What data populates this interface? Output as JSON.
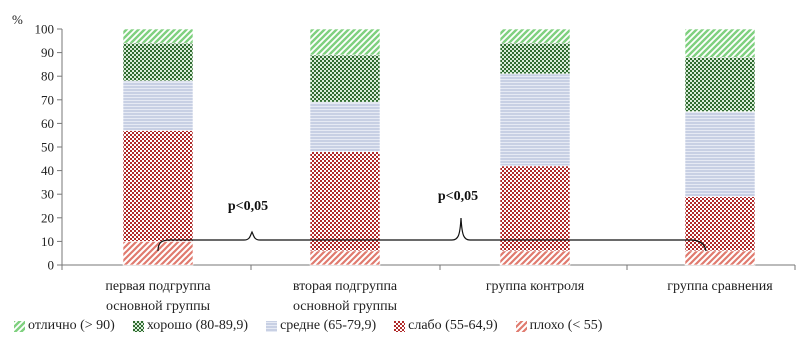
{
  "chart_data": {
    "type": "bar",
    "stacked": true,
    "y_unit_label": "%",
    "ylim": [
      0,
      100
    ],
    "y_ticks": [
      "0",
      "10",
      "20",
      "30",
      "40",
      "50",
      "60",
      "70",
      "80",
      "90",
      "100"
    ],
    "categories": [
      [
        "первая подгруппа",
        "основной группы"
      ],
      [
        "вторая подгруппа",
        "основной группы"
      ],
      [
        "группа контроля"
      ],
      [
        "группа сравнения"
      ]
    ],
    "series": [
      {
        "name": "плохо (< 55)",
        "key": "poor",
        "values": [
          10,
          6,
          6,
          6
        ]
      },
      {
        "name": "слабо (55-64,9)",
        "key": "weak",
        "values": [
          47,
          42,
          36,
          23
        ]
      },
      {
        "name": "средне (65-79,9)",
        "key": "medium",
        "values": [
          21,
          21,
          39,
          36
        ]
      },
      {
        "name": "хорошо (80-89,9)",
        "key": "good",
        "values": [
          16,
          20,
          13,
          23
        ]
      },
      {
        "name": "отлично (> 90)",
        "key": "excellent",
        "values": [
          6,
          11,
          6,
          12
        ]
      }
    ],
    "annotations": [
      {
        "text": "p<0,05"
      },
      {
        "text": "p<0,05"
      }
    ],
    "legend_position": "bottom",
    "grid": false
  },
  "colors": {
    "poor": "#e07a6e",
    "weak": "#b02a2a",
    "medium": "#c8d0e4",
    "good": "#2f6b2f",
    "excellent": "#7fd07f"
  }
}
